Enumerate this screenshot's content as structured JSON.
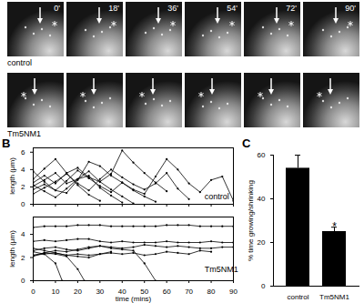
{
  "image_panel": {
    "time_labels": [
      "0'",
      "18'",
      "36'",
      "54'",
      "72'",
      "90'"
    ],
    "row_labels": [
      "control",
      "Tm5NM1"
    ]
  },
  "chart_data": [
    {
      "type": "line",
      "title": "B",
      "y_label": "length (μm)",
      "color": "#000000",
      "marker": "dot",
      "xlim": [
        0,
        90
      ],
      "xticks": [
        0,
        10,
        20,
        30,
        40,
        50,
        60,
        70,
        80,
        90
      ],
      "ylim": [
        0,
        6.5
      ],
      "yticks": [
        0,
        2,
        4,
        6
      ],
      "tick_labels": "y",
      "annotations": [
        {
          "text": "control",
          "x": 77,
          "y": 0.9
        }
      ],
      "series": [
        {
          "x": [
            0,
            5,
            10,
            15,
            20,
            25,
            30,
            35,
            40
          ],
          "values": [
            2.1,
            2.8,
            3.6,
            2.4,
            2.9,
            3.3,
            1.9,
            1.0,
            0.2
          ]
        },
        {
          "x": [
            0,
            5,
            10,
            15,
            20,
            25,
            30,
            35,
            40,
            45,
            50,
            55,
            60
          ],
          "values": [
            2.5,
            3.3,
            2.4,
            3.6,
            4.2,
            3.1,
            2.6,
            3.5,
            6.2,
            4.8,
            3.6,
            2.5,
            1.5
          ]
        },
        {
          "x": [
            0,
            5,
            10,
            15,
            20,
            25,
            30,
            35,
            40,
            45,
            50,
            55,
            60,
            65,
            70,
            75,
            80,
            85,
            90
          ],
          "values": [
            3.8,
            2.6,
            1.6,
            1.3,
            2.8,
            4.9,
            4.4,
            3.3,
            2.5,
            1.7,
            1.2,
            3.2,
            5.2,
            4.0,
            2.4,
            1.4,
            2.8,
            3.2,
            0.4
          ]
        },
        {
          "x": [
            0,
            5,
            10,
            15,
            20,
            25,
            30,
            35,
            40,
            45,
            50,
            55
          ],
          "values": [
            1.7,
            2.3,
            1.6,
            2.7,
            3.9,
            3.0,
            2.1,
            1.4,
            2.5,
            1.6,
            0.9,
            0.3
          ]
        },
        {
          "x": [
            0,
            5,
            10,
            15,
            20,
            25,
            30
          ],
          "values": [
            2.9,
            4.1,
            5.2,
            3.6,
            2.2,
            1.1,
            0.4
          ]
        },
        {
          "x": [
            0,
            5,
            10,
            15,
            20,
            25,
            30,
            35,
            40,
            45,
            50,
            55,
            60,
            65,
            70
          ],
          "values": [
            1.2,
            1.9,
            2.6,
            3.5,
            2.4,
            1.6,
            2.9,
            4.0,
            3.1,
            2.3,
            1.7,
            2.4,
            3.6,
            1.8,
            0.6
          ]
        },
        {
          "x": [
            0,
            5,
            10,
            15,
            20,
            25,
            30,
            35,
            40,
            45
          ],
          "values": [
            2.2,
            1.5,
            0.8,
            1.8,
            2.9,
            3.8,
            2.6,
            1.7,
            0.9,
            0.1
          ]
        }
      ]
    },
    {
      "type": "line",
      "y_label": "length (μm)",
      "x_label": "time (mins)",
      "color": "#000000",
      "marker": "dot",
      "xlim": [
        0,
        90
      ],
      "xticks": [
        0,
        10,
        20,
        30,
        40,
        50,
        60,
        70,
        80,
        90
      ],
      "ylim": [
        0,
        5.5
      ],
      "yticks": [
        0,
        2,
        4
      ],
      "annotations": [
        {
          "text": "Tm5NM1",
          "x": 77,
          "y": 1.0
        }
      ],
      "series": [
        {
          "x": [
            0,
            5,
            10,
            15,
            20,
            25,
            30,
            35,
            40,
            45,
            50,
            55,
            60,
            65,
            70,
            75,
            80,
            85,
            90
          ],
          "values": [
            4.6,
            4.7,
            4.7,
            4.7,
            4.8,
            4.8,
            4.8,
            4.7,
            4.7,
            4.7,
            4.7,
            4.7,
            4.8,
            4.8,
            4.8,
            4.7,
            4.7,
            4.7,
            4.7
          ]
        },
        {
          "x": [
            0,
            5,
            10,
            15,
            20,
            25,
            30,
            35,
            40,
            45,
            50,
            55,
            60,
            65,
            70,
            75,
            80,
            85,
            90
          ],
          "values": [
            3.4,
            3.5,
            3.4,
            3.5,
            3.6,
            3.6,
            3.4,
            3.3,
            3.4,
            3.3,
            3.3,
            3.3,
            3.4,
            3.3,
            3.3,
            3.3,
            3.4,
            3.3,
            3.3
          ]
        },
        {
          "x": [
            0,
            5,
            10,
            15,
            20,
            25,
            30,
            35,
            40,
            45,
            50,
            55,
            60,
            65,
            70,
            75,
            80,
            85,
            90
          ],
          "values": [
            2.6,
            2.8,
            2.9,
            2.7,
            2.6,
            2.8,
            3.0,
            2.9,
            2.8,
            2.9,
            3.1,
            3.0,
            2.9,
            3.0,
            2.9,
            2.8,
            2.8,
            2.9,
            2.9
          ]
        },
        {
          "x": [
            0,
            5,
            10,
            15,
            20,
            25,
            30,
            35,
            40,
            45,
            50,
            55,
            60,
            65,
            70,
            75,
            80
          ],
          "values": [
            2.2,
            2.3,
            2.4,
            2.2,
            2.3,
            2.2,
            2.3,
            2.4,
            2.3,
            2.4,
            2.2,
            2.3,
            2.5,
            2.4,
            2.3,
            2.6,
            2.5
          ]
        },
        {
          "x": [
            0,
            5,
            10,
            13
          ],
          "values": [
            2.5,
            2.3,
            1.5,
            0
          ]
        },
        {
          "x": [
            0,
            5,
            10,
            15,
            20,
            23
          ],
          "values": [
            2.2,
            2.4,
            2.3,
            2.1,
            1.0,
            0
          ]
        },
        {
          "x": [
            0,
            5,
            10,
            15,
            20,
            25,
            30,
            35,
            40,
            45,
            50,
            55
          ],
          "values": [
            2.1,
            2.4,
            2.6,
            2.5,
            2.7,
            2.9,
            3.0,
            2.8,
            2.7,
            2.6,
            1.5,
            0
          ]
        },
        {
          "x": [
            0,
            5,
            10,
            15,
            20,
            25,
            30,
            35
          ],
          "values": [
            2.8,
            2.6,
            2.4,
            2.2,
            2.1,
            2.0,
            2.3,
            2.5
          ]
        }
      ]
    },
    {
      "type": "bar",
      "title": "C",
      "y_label": "% time growing/shrinking",
      "color": "#000000",
      "categories": [
        "control",
        "Tm5NM1"
      ],
      "values": [
        54,
        25
      ],
      "errors": [
        6,
        2
      ],
      "ylim": [
        0,
        60
      ],
      "yticks": [
        0,
        20,
        40,
        60
      ],
      "annotations": [
        {
          "text": "*",
          "category": "Tm5NM1",
          "y": 28
        }
      ]
    }
  ]
}
